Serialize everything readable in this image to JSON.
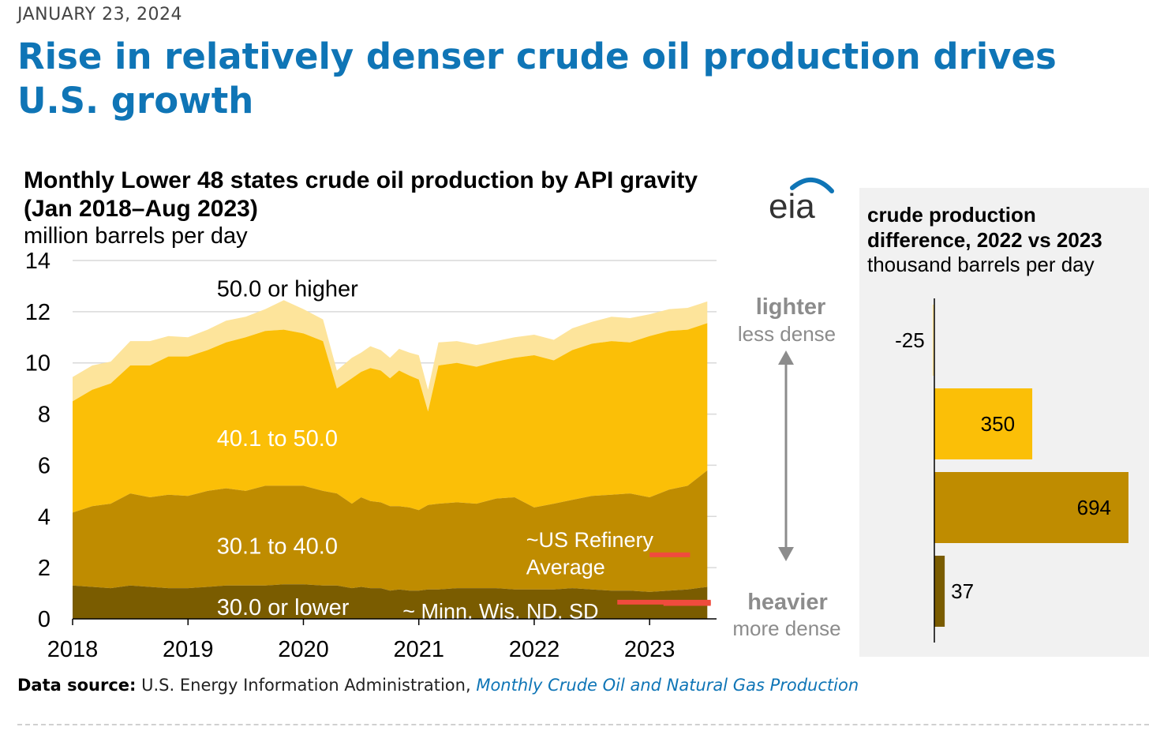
{
  "date": "JANUARY 23, 2024",
  "headline": "Rise in relatively denser crude oil production drives U.S. growth",
  "chart_header": {
    "title_line1": "Monthly Lower 48 states crude oil production by API gravity",
    "title_line2": "(Jan 2018–Aug 2023)",
    "units": "million barrels per day"
  },
  "logo_text": "eia",
  "density_scale": {
    "top_label": "lighter",
    "top_sub": "less dense",
    "bottom_label": "heavier",
    "bottom_sub": "more dense"
  },
  "annotations": {
    "refinery_line1": "~US Refinery",
    "refinery_line2": "Average",
    "refinery_value": 2.5,
    "minn_label": "~ Minn. Wis. ND. SD",
    "minn_value": 0.65
  },
  "bar_panel": {
    "title_line1": "crude production",
    "title_line2": "difference, 2022 vs 2023",
    "units": "thousand barrels per day"
  },
  "source": {
    "label": "Data source:",
    "text": "U.S. Energy Information Administration,",
    "link": "Monthly Crude Oil and Natural Gas Production"
  },
  "colors": {
    "g50": "#fde49b",
    "g40": "#fbbf07",
    "g30": "#bf8c00",
    "g0": "#7a5c00",
    "grid": "#d9d9d9",
    "arrow": "#8c8c8c",
    "redline": "#f04b3d",
    "headline": "#0f75b6"
  },
  "chart_data": [
    {
      "type": "area",
      "title": "Monthly Lower 48 states crude oil production by API gravity (Jan 2018–Aug 2023)",
      "ylabel": "million barrels per day",
      "ylim": [
        0,
        14
      ],
      "yticks": [
        "0",
        "2",
        "4",
        "6",
        "8",
        "10",
        "12",
        "14"
      ],
      "xticks": [
        "2018",
        "2019",
        "2020",
        "2021",
        "2022",
        "2023"
      ],
      "xlim": [
        2018,
        2023.58
      ],
      "stacked": true,
      "x": [
        2018.0,
        2018.17,
        2018.33,
        2018.5,
        2018.67,
        2018.83,
        2019.0,
        2019.17,
        2019.33,
        2019.5,
        2019.67,
        2019.83,
        2020.0,
        2020.17,
        2020.29,
        2020.42,
        2020.5,
        2020.58,
        2020.67,
        2020.75,
        2020.83,
        2020.92,
        2021.0,
        2021.08,
        2021.17,
        2021.33,
        2021.5,
        2021.67,
        2021.83,
        2022.0,
        2022.17,
        2022.33,
        2022.5,
        2022.67,
        2022.83,
        2023.0,
        2023.17,
        2023.33,
        2023.5
      ],
      "series": [
        {
          "name": "30.0 or lower",
          "values": [
            1.3,
            1.25,
            1.2,
            1.3,
            1.25,
            1.2,
            1.2,
            1.25,
            1.3,
            1.3,
            1.3,
            1.35,
            1.35,
            1.3,
            1.3,
            1.2,
            1.25,
            1.2,
            1.2,
            1.1,
            1.15,
            1.1,
            1.1,
            1.15,
            1.15,
            1.2,
            1.2,
            1.2,
            1.15,
            1.15,
            1.15,
            1.2,
            1.15,
            1.1,
            1.1,
            1.05,
            1.1,
            1.15,
            1.25
          ]
        },
        {
          "name": "30.1 to 40.0",
          "values": [
            2.85,
            3.15,
            3.3,
            3.6,
            3.5,
            3.65,
            3.6,
            3.75,
            3.8,
            3.7,
            3.9,
            3.85,
            3.85,
            3.7,
            3.6,
            3.3,
            3.5,
            3.4,
            3.35,
            3.3,
            3.25,
            3.25,
            3.15,
            3.3,
            3.35,
            3.35,
            3.3,
            3.5,
            3.6,
            3.2,
            3.35,
            3.45,
            3.65,
            3.75,
            3.8,
            3.7,
            3.95,
            4.05,
            4.55
          ]
        },
        {
          "name": "40.1 to 50.0",
          "values": [
            4.35,
            4.55,
            4.7,
            5.0,
            5.15,
            5.4,
            5.45,
            5.5,
            5.7,
            6.0,
            6.05,
            6.1,
            5.95,
            5.85,
            4.1,
            4.9,
            4.9,
            5.2,
            5.15,
            5.0,
            5.3,
            5.15,
            5.1,
            3.65,
            5.4,
            5.45,
            5.35,
            5.35,
            5.45,
            5.95,
            5.6,
            5.85,
            5.95,
            6.0,
            5.9,
            6.3,
            6.2,
            6.1,
            5.75
          ]
        },
        {
          "name": "50.0 or higher",
          "values": [
            0.95,
            0.95,
            0.85,
            0.95,
            0.95,
            0.8,
            0.75,
            0.8,
            0.85,
            0.8,
            0.85,
            1.15,
            0.95,
            0.85,
            0.7,
            0.8,
            0.75,
            0.85,
            0.8,
            0.8,
            0.85,
            0.9,
            0.95,
            0.85,
            0.9,
            0.85,
            0.85,
            0.8,
            0.8,
            0.8,
            0.8,
            0.85,
            0.85,
            0.95,
            0.95,
            0.85,
            0.85,
            0.85,
            0.85
          ]
        }
      ],
      "series_labels": {
        "50.0 or higher": {
          "text": "50.0 or higher",
          "color": "#000000"
        },
        "40.1 to 50.0": {
          "text": "40.1 to 50.0",
          "color": "#ffffff"
        },
        "30.1 to 40.0": {
          "text": "30.1 to 40.0",
          "color": "#ffffff"
        },
        "30.0 or lower": {
          "text": "30.0 or lower",
          "color": "#ffffff"
        }
      }
    },
    {
      "type": "bar",
      "orientation": "horizontal",
      "title": "crude production difference, 2022 vs 2023",
      "ylabel": "thousand barrels per day",
      "categories": [
        "50.0 or higher",
        "40.1 to 50.0",
        "30.1 to 40.0",
        "30.0 or lower"
      ],
      "values": [
        -25,
        350,
        694,
        37
      ],
      "data_labels": [
        "-25",
        "350",
        "694",
        "37"
      ],
      "xlim": [
        -25,
        694
      ]
    }
  ]
}
